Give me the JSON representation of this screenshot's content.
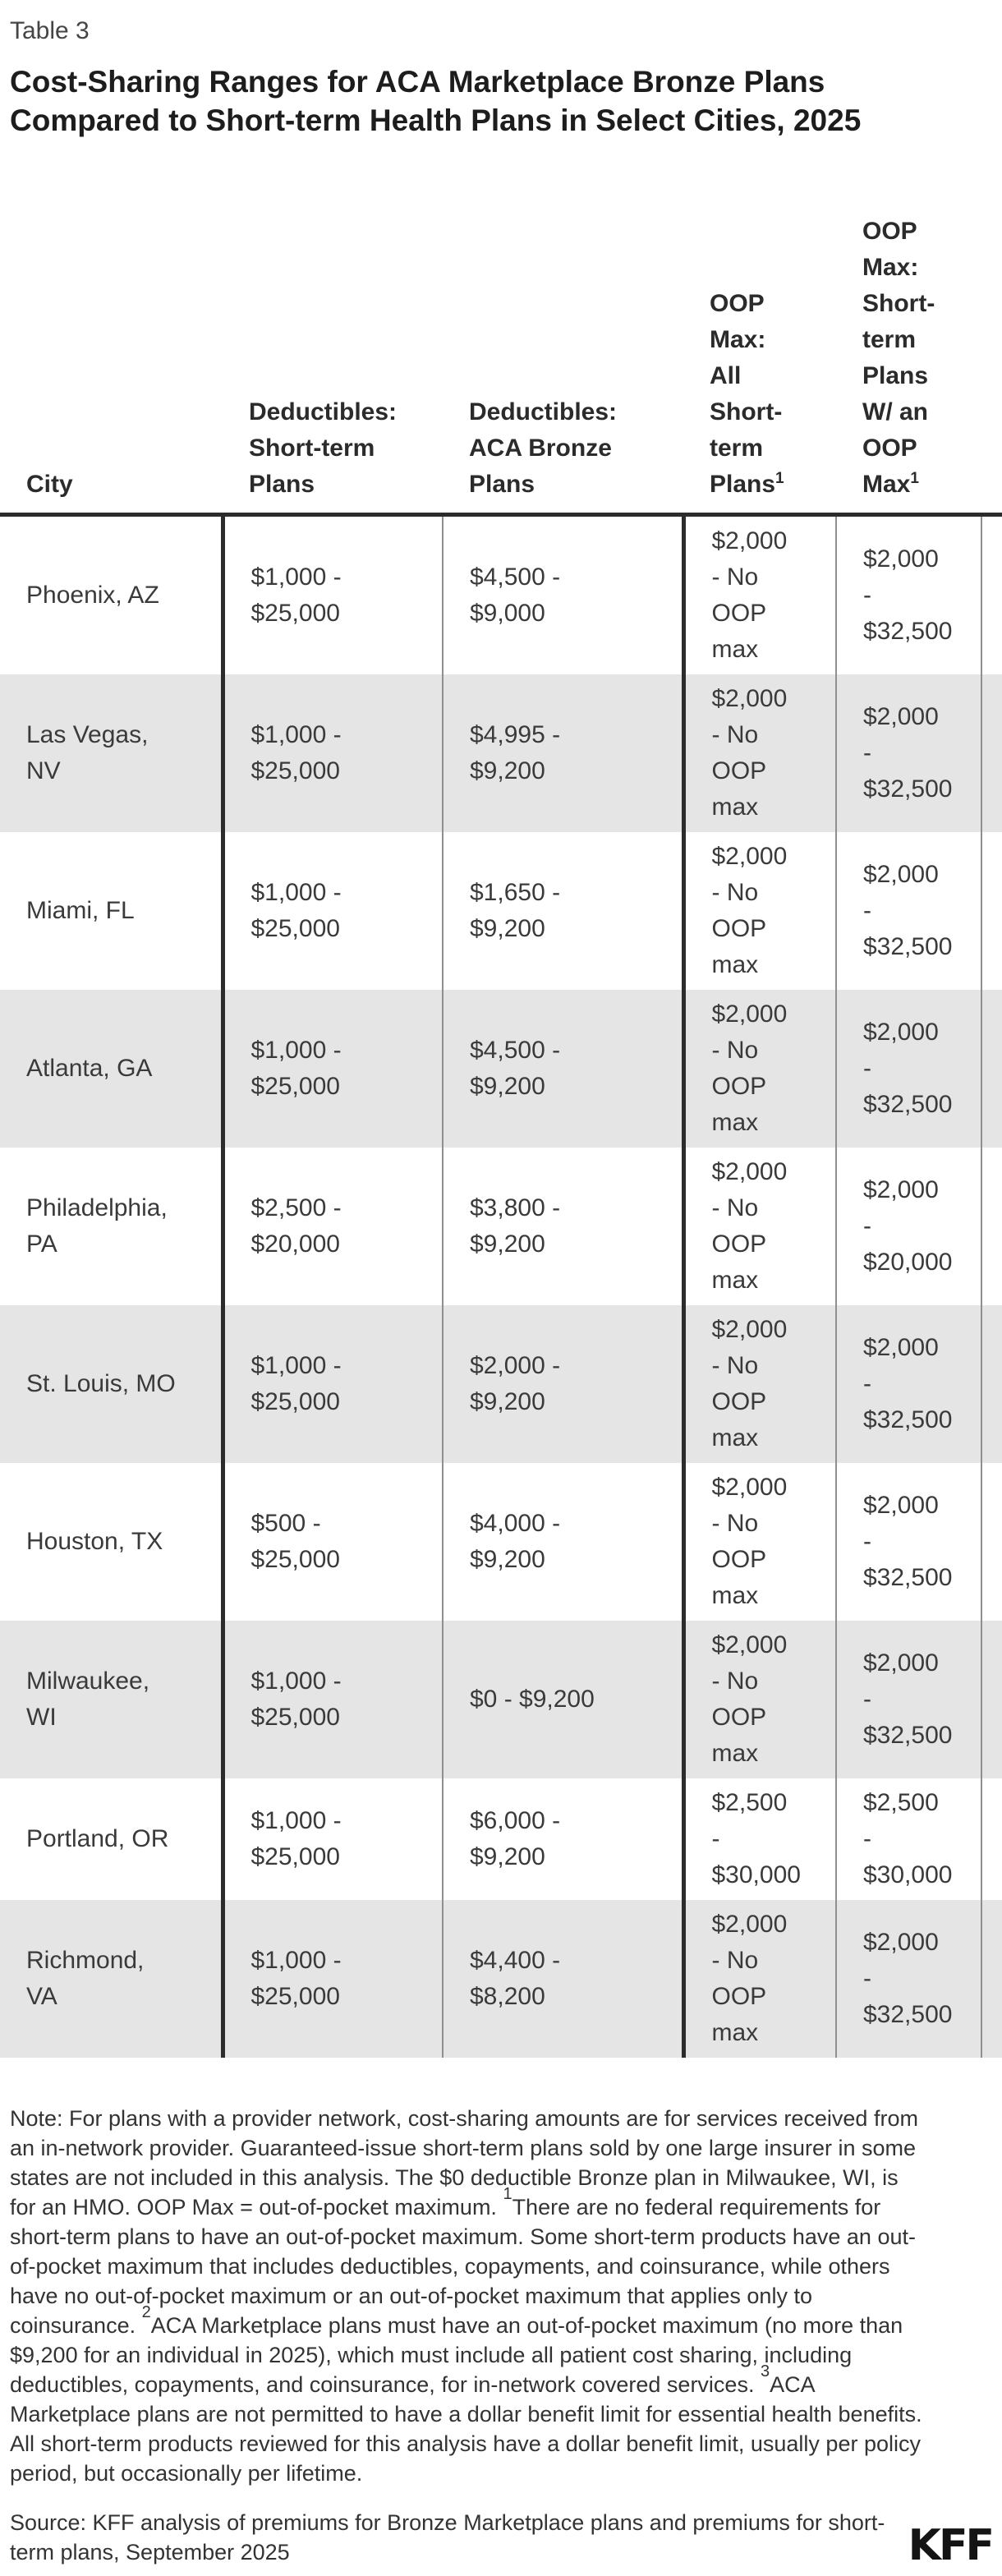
{
  "header": {
    "table_label": "Table 3",
    "title": "Cost-Sharing Ranges for ACA Marketplace Bronze Plans Compared to Short-term Health Plans in Select Cities, 2025"
  },
  "table": {
    "columns": [
      {
        "label": "City",
        "sup": ""
      },
      {
        "label": "Deductibles:\nShort-term\nPlans",
        "sup": ""
      },
      {
        "label": "Deductibles:\nACA Bronze\nPlans",
        "sup": ""
      },
      {
        "label": "OOP\nMax:\nAll\nShort-\nterm\nPlans",
        "sup": "1"
      },
      {
        "label": "OOP\nMax:\nShort-\nterm\nPlans\nW/ an\nOOP\nMax",
        "sup": "1"
      },
      {
        "label": "",
        "sup": ""
      }
    ],
    "rows": [
      {
        "cells": [
          "Phoenix, AZ",
          "$1,000 -\n$25,000",
          "$4,500 -\n$9,000",
          "$2,000\n- No\nOOP\nmax",
          "$2,000\n-\n$32,500",
          ""
        ]
      },
      {
        "cells": [
          "Las Vegas,\nNV",
          "$1,000 -\n$25,000",
          "$4,995 -\n$9,200",
          "$2,000\n- No\nOOP\nmax",
          "$2,000\n-\n$32,500",
          ""
        ]
      },
      {
        "cells": [
          "Miami, FL",
          "$1,000 -\n$25,000",
          "$1,650 -\n$9,200",
          "$2,000\n- No\nOOP\nmax",
          "$2,000\n-\n$32,500",
          ""
        ]
      },
      {
        "cells": [
          "Atlanta, GA",
          "$1,000 -\n$25,000",
          "$4,500 -\n$9,200",
          "$2,000\n- No\nOOP\nmax",
          "$2,000\n-\n$32,500",
          ""
        ]
      },
      {
        "cells": [
          "Philadelphia,\nPA",
          "$2,500 -\n$20,000",
          "$3,800 -\n$9,200",
          "$2,000\n- No\nOOP\nmax",
          "$2,000\n-\n$20,000",
          ""
        ]
      },
      {
        "cells": [
          "St. Louis, MO",
          "$1,000 -\n$25,000",
          "$2,000 -\n$9,200",
          "$2,000\n- No\nOOP\nmax",
          "$2,000\n-\n$32,500",
          ""
        ]
      },
      {
        "cells": [
          "Houston, TX",
          "$500 -\n$25,000",
          "$4,000 -\n$9,200",
          "$2,000\n- No\nOOP\nmax",
          "$2,000\n-\n$32,500",
          ""
        ]
      },
      {
        "cells": [
          "Milwaukee,\nWI",
          "$1,000 -\n$25,000",
          "$0 - $9,200",
          "$2,000\n- No\nOOP\nmax",
          "$2,000\n-\n$32,500",
          ""
        ]
      },
      {
        "cells": [
          "Portland, OR",
          "$1,000 -\n$25,000",
          "$6,000 -\n$9,200",
          "$2,500\n-\n$30,000",
          "$2,500\n-\n$30,000",
          ""
        ]
      },
      {
        "cells": [
          "Richmond,\nVA",
          "$1,000 -\n$25,000",
          "$4,400 -\n$8,200",
          "$2,000\n- No\nOOP\nmax",
          "$2,000\n-\n$32,500",
          ""
        ]
      }
    ]
  },
  "chart_data": {
    "type": "table",
    "title": "Cost-Sharing Ranges for ACA Marketplace Bronze Plans Compared to Short-term Health Plans in Select Cities, 2025",
    "columns": [
      "City",
      "Deductibles: Short-term Plans",
      "Deductibles: ACA Bronze Plans",
      "OOP Max: All Short-term Plans¹",
      "OOP Max: Short-term Plans W/ an OOP Max¹"
    ],
    "rows": [
      [
        "Phoenix, AZ",
        "$1,000 - $25,000",
        "$4,500 - $9,000",
        "$2,000 - No OOP max",
        "$2,000 - $32,500"
      ],
      [
        "Las Vegas, NV",
        "$1,000 - $25,000",
        "$4,995 - $9,200",
        "$2,000 - No OOP max",
        "$2,000 - $32,500"
      ],
      [
        "Miami, FL",
        "$1,000 - $25,000",
        "$1,650 - $9,200",
        "$2,000 - No OOP max",
        "$2,000 - $32,500"
      ],
      [
        "Atlanta, GA",
        "$1,000 - $25,000",
        "$4,500 - $9,200",
        "$2,000 - No OOP max",
        "$2,000 - $32,500"
      ],
      [
        "Philadelphia, PA",
        "$2,500 - $20,000",
        "$3,800 - $9,200",
        "$2,000 - No OOP max",
        "$2,000 - $20,000"
      ],
      [
        "St. Louis, MO",
        "$1,000 - $25,000",
        "$2,000 - $9,200",
        "$2,000 - No OOP max",
        "$2,000 - $32,500"
      ],
      [
        "Houston, TX",
        "$500 - $25,000",
        "$4,000 - $9,200",
        "$2,000 - No OOP max",
        "$2,000 - $32,500"
      ],
      [
        "Milwaukee, WI",
        "$1,000 - $25,000",
        "$0 - $9,200",
        "$2,000 - No OOP max",
        "$2,000 - $32,500"
      ],
      [
        "Portland, OR",
        "$1,000 - $25,000",
        "$6,000 - $9,200",
        "$2,500 - $30,000",
        "$2,500 - $30,000"
      ],
      [
        "Richmond, VA",
        "$1,000 - $25,000",
        "$4,400 - $8,200",
        "$2,000 - No OOP max",
        "$2,000 - $32,500"
      ]
    ]
  },
  "notes": {
    "segments": [
      {
        "t": "Note: For plans with a provider network, cost-sharing amounts are for services received from an in-network provider. Guaranteed-issue short-term plans sold by one large insurer in some states are not included in this analysis. The $0 deductible Bronze plan in Milwaukee, WI, is for an HMO. OOP Max = out-of-pocket maximum. "
      },
      {
        "sup": "1"
      },
      {
        "t": "There are no federal requirements for short-term plans to have an out-of-pocket maximum. Some short-term products have an out-of-pocket maximum that includes deductibles, copayments, and coinsurance, while others have no out-of-pocket maximum or an out-of-pocket maximum that applies only to coinsurance. "
      },
      {
        "sup": "2"
      },
      {
        "t": "ACA Marketplace plans must have an out-of-pocket maximum (no more than $9,200 for an individual in 2025), which must include all patient cost sharing, including deductibles, copayments, and coinsurance, for in-network covered services. "
      },
      {
        "sup": "3"
      },
      {
        "t": "ACA Marketplace plans are not permitted to have a dollar benefit limit for essential health benefits. All short-term products reviewed for this analysis have a dollar benefit limit, usually per policy period, but occasionally per lifetime."
      }
    ]
  },
  "footer": {
    "source": "Source: KFF analysis of premiums for Bronze Marketplace plans and premiums for short-term plans, September 2025",
    "logo": "KFF"
  },
  "colors": {
    "row_stripe": "#e5e5e5",
    "border_dark": "#2c2c2c",
    "border_light": "#8f8f8f",
    "title_text": "#1d1d1d",
    "body_text": "#3a3a3a"
  }
}
